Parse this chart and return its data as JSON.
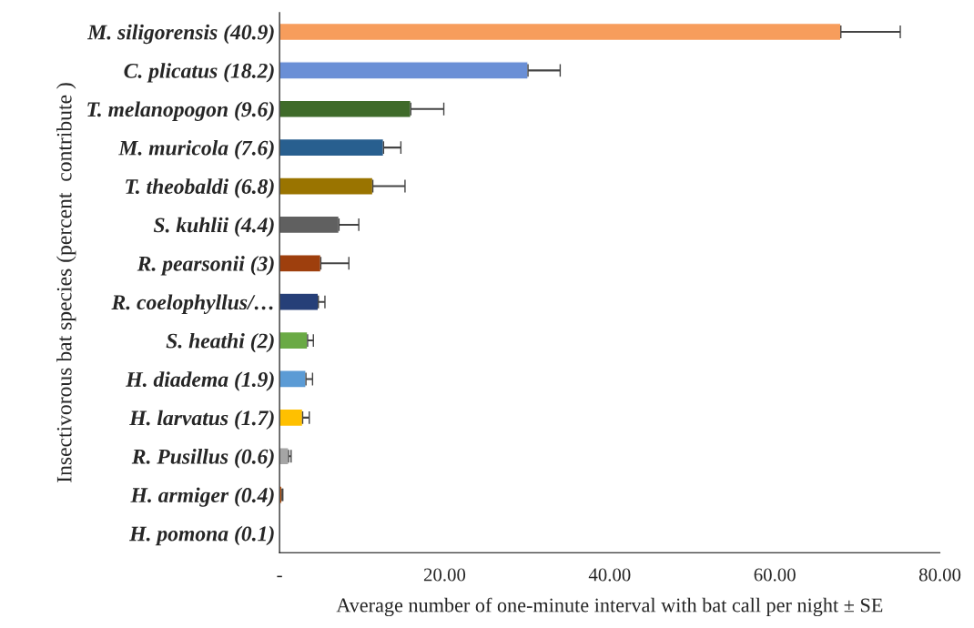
{
  "chart_data": {
    "type": "bar",
    "orientation": "horizontal",
    "xlabel": "Average number of one-minute interval with bat call per night ± SE",
    "ylabel": "Insectivorous bat species (percent  contribute )",
    "categories": [
      "M. siligorensis (40.9)",
      "C. plicatus (18.2)",
      "T. melanopogon (9.6)",
      "M. muricola (7.6)",
      "T. theobaldi (6.8)",
      "S. kuhlii (4.4)",
      "R. pearsonii (3)",
      "R. coelophyllus/…",
      "S. heathi (2)",
      "H. diadema (1.9)",
      "H. larvatus (1.7)",
      "R. Pusillus (0.6)",
      "H. armiger (0.4)",
      "H. pomona (0.1)"
    ],
    "values": [
      68.0,
      30.1,
      15.9,
      12.6,
      11.3,
      7.2,
      5.0,
      4.7,
      3.4,
      3.2,
      2.8,
      1.1,
      0.3,
      0.1
    ],
    "errors": [
      7.2,
      3.9,
      4.0,
      2.1,
      3.9,
      2.4,
      3.4,
      0.8,
      0.7,
      0.8,
      0.8,
      0.3,
      0.1,
      null
    ],
    "colors": [
      "#f79d5c",
      "#6a8fd6",
      "#3f6b2a",
      "#285f8f",
      "#9a7400",
      "#606060",
      "#9e3f0d",
      "#263f78",
      "#6aaa45",
      "#5b9bd5",
      "#ffc000",
      "#a5a5a5",
      "#c55a11",
      "#4472c4"
    ],
    "xlim": [
      0,
      80
    ],
    "xticks": [
      {
        "value": 0,
        "label": "-"
      },
      {
        "value": 20,
        "label": "20.00"
      },
      {
        "value": 40,
        "label": "40.00"
      },
      {
        "value": 60,
        "label": "60.00"
      },
      {
        "value": 80,
        "label": "80.00"
      }
    ],
    "grid": false,
    "legend": false
  }
}
